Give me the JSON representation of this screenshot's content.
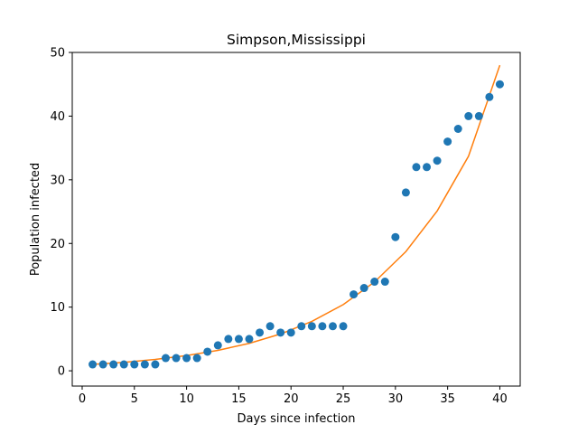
{
  "chart_data": {
    "type": "scatter",
    "title": "Simpson,Mississippi",
    "xlabel": "Days since infection",
    "ylabel": "Population infected",
    "xlim": [
      -0.95,
      41.95
    ],
    "ylim": [
      -2.4,
      50
    ],
    "xticks": [
      0,
      5,
      10,
      15,
      20,
      25,
      30,
      35,
      40
    ],
    "yticks": [
      0,
      10,
      20,
      30,
      40,
      50
    ],
    "grid": false,
    "colors": {
      "points": "#1f77b4",
      "fit": "#ff7f0e",
      "axes": "#000000"
    },
    "series": [
      {
        "kind": "scatter",
        "x": [
          1,
          2,
          3,
          4,
          5,
          6,
          7,
          8,
          9,
          10,
          11,
          12,
          13,
          14,
          15,
          16,
          17,
          18,
          19,
          20,
          21,
          22,
          23,
          24,
          25,
          26,
          27,
          28,
          29,
          30,
          31,
          32,
          33,
          34,
          35,
          36,
          37,
          38,
          39,
          40
        ],
        "y": [
          1,
          1,
          1,
          1,
          1,
          1,
          1,
          2,
          2,
          2,
          2,
          3,
          4,
          5,
          5,
          5,
          6,
          7,
          6,
          6,
          7,
          7,
          7,
          7,
          7,
          12,
          13,
          14,
          14,
          21,
          28,
          32,
          32,
          33,
          36,
          38,
          40,
          40,
          43,
          45
        ]
      },
      {
        "kind": "line",
        "x": [
          1,
          4,
          7,
          10,
          13,
          16,
          19,
          22,
          25,
          28,
          31,
          34,
          37,
          40
        ],
        "y": [
          1.0,
          1.33,
          1.79,
          2.39,
          3.21,
          4.31,
          5.78,
          7.76,
          10.4,
          13.95,
          18.72,
          25.11,
          33.7,
          48.0
        ]
      }
    ]
  }
}
